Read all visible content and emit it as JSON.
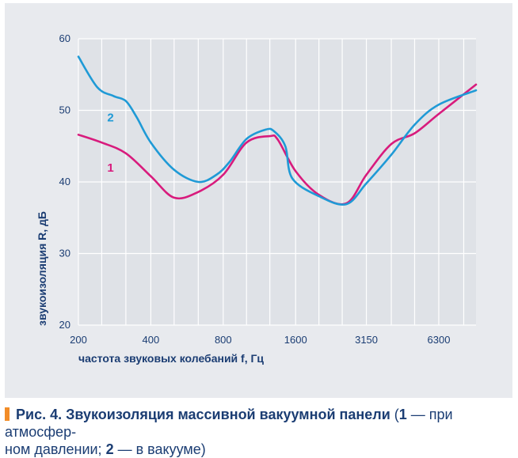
{
  "chart_data": {
    "type": "line",
    "xlabel": "частота звуковых колебаний f, Гц",
    "ylabel": "звукоизоляция R, дБ",
    "x_ticks": [
      "200",
      "400",
      "800",
      "1600",
      "3150",
      "6300"
    ],
    "y_ticks": [
      20,
      30,
      40,
      50,
      60
    ],
    "ylim": [
      20,
      60
    ],
    "x_scale": "log",
    "xlim": [
      200,
      9000
    ],
    "grid": "vertical and horizontal",
    "series": [
      {
        "name": "1",
        "color": "#d81b7d",
        "points": [
          [
            200,
            46.6
          ],
          [
            250,
            45.5
          ],
          [
            315,
            44.0
          ],
          [
            400,
            40.8
          ],
          [
            500,
            37.8
          ],
          [
            630,
            38.6
          ],
          [
            800,
            41.0
          ],
          [
            1000,
            45.5
          ],
          [
            1250,
            46.4
          ],
          [
            1350,
            45.9
          ],
          [
            1600,
            41.5
          ],
          [
            2000,
            38.2
          ],
          [
            2600,
            37.0
          ],
          [
            3150,
            41.0
          ],
          [
            4000,
            45.3
          ],
          [
            5000,
            46.8
          ],
          [
            6300,
            49.5
          ],
          [
            9000,
            53.6
          ]
        ]
      },
      {
        "name": "2",
        "color": "#1f9ad6",
        "points": [
          [
            200,
            57.5
          ],
          [
            240,
            53.2
          ],
          [
            280,
            52.0
          ],
          [
            315,
            51.3
          ],
          [
            350,
            49.0
          ],
          [
            400,
            45.5
          ],
          [
            500,
            41.7
          ],
          [
            630,
            40.0
          ],
          [
            750,
            41.0
          ],
          [
            850,
            42.8
          ],
          [
            1000,
            46.0
          ],
          [
            1200,
            47.3
          ],
          [
            1300,
            47.1
          ],
          [
            1450,
            45.0
          ],
          [
            1550,
            40.5
          ],
          [
            2000,
            38.0
          ],
          [
            2600,
            36.9
          ],
          [
            3150,
            39.8
          ],
          [
            4000,
            43.8
          ],
          [
            5000,
            48.0
          ],
          [
            6300,
            50.8
          ],
          [
            9000,
            52.8
          ]
        ]
      }
    ],
    "label_positions_data": [
      {
        "name": "1",
        "x": 280,
        "y": 42
      },
      {
        "name": "2",
        "x": 280,
        "y": 49
      }
    ]
  },
  "caption": {
    "prefix": "Рис. 4. Звукоизоляция массивной вакуумной панели",
    "open": " (",
    "n1": "1",
    "t1": " — при атмосфер-",
    "line2": "ном давлении; ",
    "n2": "2",
    "t2": " — в вакууме)"
  }
}
